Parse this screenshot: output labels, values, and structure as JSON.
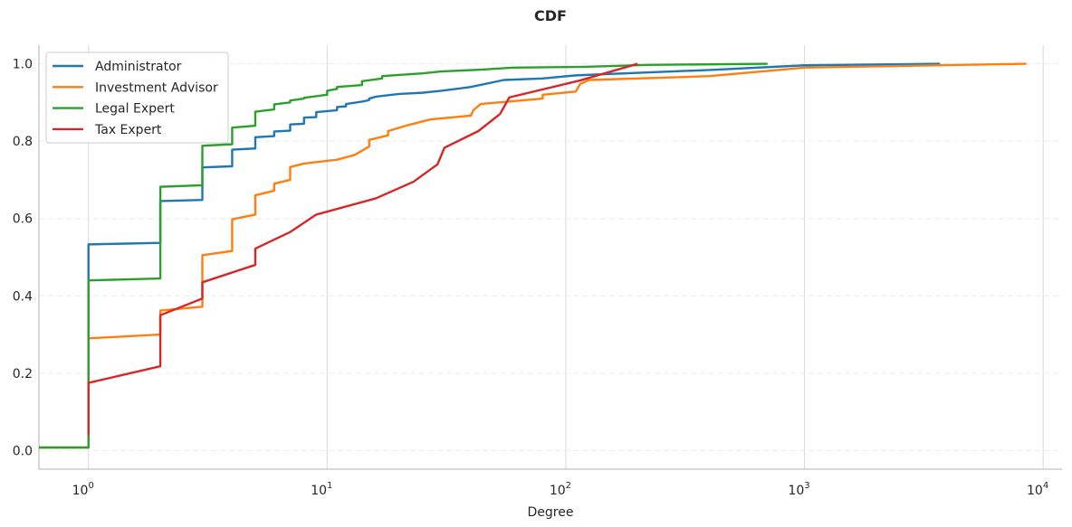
{
  "chart_data": {
    "type": "line",
    "title": "CDF",
    "xlabel": "Degree",
    "ylabel": "",
    "xscale": "log",
    "xlim": [
      0.62,
      12000
    ],
    "ylim": [
      -0.048,
      1.048
    ],
    "grid": "vertical major gridlines solid; horizontal dashed",
    "legend_position": "top-left",
    "x_ticks": [
      {
        "base": "10",
        "exp": "0",
        "value": 1
      },
      {
        "base": "10",
        "exp": "1",
        "value": 10
      },
      {
        "base": "10",
        "exp": "2",
        "value": 100
      },
      {
        "base": "10",
        "exp": "3",
        "value": 1000
      },
      {
        "base": "10",
        "exp": "4",
        "value": 10000
      }
    ],
    "y_ticks": [
      {
        "label": "0.0",
        "value": 0.0
      },
      {
        "label": "0.2",
        "value": 0.2
      },
      {
        "label": "0.4",
        "value": 0.4
      },
      {
        "label": "0.6",
        "value": 0.6
      },
      {
        "label": "0.8",
        "value": 0.8
      },
      {
        "label": "1.0",
        "value": 1.0
      }
    ],
    "series": [
      {
        "name": "Administrator",
        "color": "#1f77b4",
        "points": [
          [
            0.62,
            0.008
          ],
          [
            1,
            0.008
          ],
          [
            1,
            0.533
          ],
          [
            2,
            0.537
          ],
          [
            2,
            0.645
          ],
          [
            3,
            0.648
          ],
          [
            3,
            0.732
          ],
          [
            4,
            0.735
          ],
          [
            4,
            0.778
          ],
          [
            5,
            0.781
          ],
          [
            5,
            0.81
          ],
          [
            6,
            0.813
          ],
          [
            6,
            0.825
          ],
          [
            7,
            0.827
          ],
          [
            7,
            0.843
          ],
          [
            8,
            0.845
          ],
          [
            8,
            0.861
          ],
          [
            9,
            0.862
          ],
          [
            9,
            0.875
          ],
          [
            11,
            0.88
          ],
          [
            11,
            0.888
          ],
          [
            12,
            0.89
          ],
          [
            12,
            0.896
          ],
          [
            14,
            0.902
          ],
          [
            15,
            0.906
          ],
          [
            15,
            0.91
          ],
          [
            16,
            0.915
          ],
          [
            20,
            0.922
          ],
          [
            25,
            0.925
          ],
          [
            30,
            0.93
          ],
          [
            40,
            0.94
          ],
          [
            55,
            0.958
          ],
          [
            80,
            0.962
          ],
          [
            110,
            0.97
          ],
          [
            400,
            0.984
          ],
          [
            1000,
            0.996
          ],
          [
            3700,
            1.0
          ]
        ]
      },
      {
        "name": "Investment Advisor",
        "color": "#ff7f0e",
        "points": [
          [
            0.62,
            0.008
          ],
          [
            1,
            0.008
          ],
          [
            1,
            0.29
          ],
          [
            2,
            0.3
          ],
          [
            2,
            0.362
          ],
          [
            3,
            0.372
          ],
          [
            3,
            0.505
          ],
          [
            4,
            0.516
          ],
          [
            4,
            0.598
          ],
          [
            5,
            0.61
          ],
          [
            5,
            0.66
          ],
          [
            6,
            0.672
          ],
          [
            6,
            0.69
          ],
          [
            7,
            0.7
          ],
          [
            7,
            0.733
          ],
          [
            8,
            0.742
          ],
          [
            11,
            0.752
          ],
          [
            13,
            0.764
          ],
          [
            15,
            0.786
          ],
          [
            15,
            0.803
          ],
          [
            18,
            0.815
          ],
          [
            18,
            0.826
          ],
          [
            22,
            0.842
          ],
          [
            27,
            0.856
          ],
          [
            40,
            0.866
          ],
          [
            41,
            0.88
          ],
          [
            44,
            0.896
          ],
          [
            80,
            0.91
          ],
          [
            80,
            0.92
          ],
          [
            110,
            0.928
          ],
          [
            115,
            0.948
          ],
          [
            125,
            0.958
          ],
          [
            400,
            0.968
          ],
          [
            1000,
            0.99
          ],
          [
            8500,
            1.0
          ]
        ]
      },
      {
        "name": "Legal Expert",
        "color": "#2ca02c",
        "points": [
          [
            0.62,
            0.008
          ],
          [
            1,
            0.008
          ],
          [
            1,
            0.44
          ],
          [
            2,
            0.445
          ],
          [
            2,
            0.682
          ],
          [
            3,
            0.686
          ],
          [
            3,
            0.788
          ],
          [
            4,
            0.792
          ],
          [
            4,
            0.835
          ],
          [
            5,
            0.84
          ],
          [
            5,
            0.876
          ],
          [
            6,
            0.882
          ],
          [
            6,
            0.895
          ],
          [
            7,
            0.9
          ],
          [
            7,
            0.905
          ],
          [
            8,
            0.91
          ],
          [
            8,
            0.912
          ],
          [
            10,
            0.92
          ],
          [
            10,
            0.93
          ],
          [
            11,
            0.935
          ],
          [
            11,
            0.94
          ],
          [
            14,
            0.945
          ],
          [
            14,
            0.955
          ],
          [
            17,
            0.962
          ],
          [
            17,
            0.968
          ],
          [
            25,
            0.975
          ],
          [
            30,
            0.98
          ],
          [
            45,
            0.985
          ],
          [
            60,
            0.99
          ],
          [
            120,
            0.992
          ],
          [
            220,
            0.997
          ],
          [
            700,
            1.0
          ]
        ]
      },
      {
        "name": "Tax Expert",
        "color": "#d62728",
        "points": [
          [
            1,
            0.04
          ],
          [
            1,
            0.175
          ],
          [
            2,
            0.218
          ],
          [
            2,
            0.35
          ],
          [
            3,
            0.393
          ],
          [
            3,
            0.435
          ],
          [
            5,
            0.48
          ],
          [
            5,
            0.522
          ],
          [
            7,
            0.565
          ],
          [
            9,
            0.61
          ],
          [
            16,
            0.652
          ],
          [
            23,
            0.695
          ],
          [
            29,
            0.74
          ],
          [
            31,
            0.783
          ],
          [
            43,
            0.826
          ],
          [
            53,
            0.87
          ],
          [
            58,
            0.913
          ],
          [
            115,
            0.957
          ],
          [
            200,
            1.0
          ]
        ]
      }
    ]
  }
}
